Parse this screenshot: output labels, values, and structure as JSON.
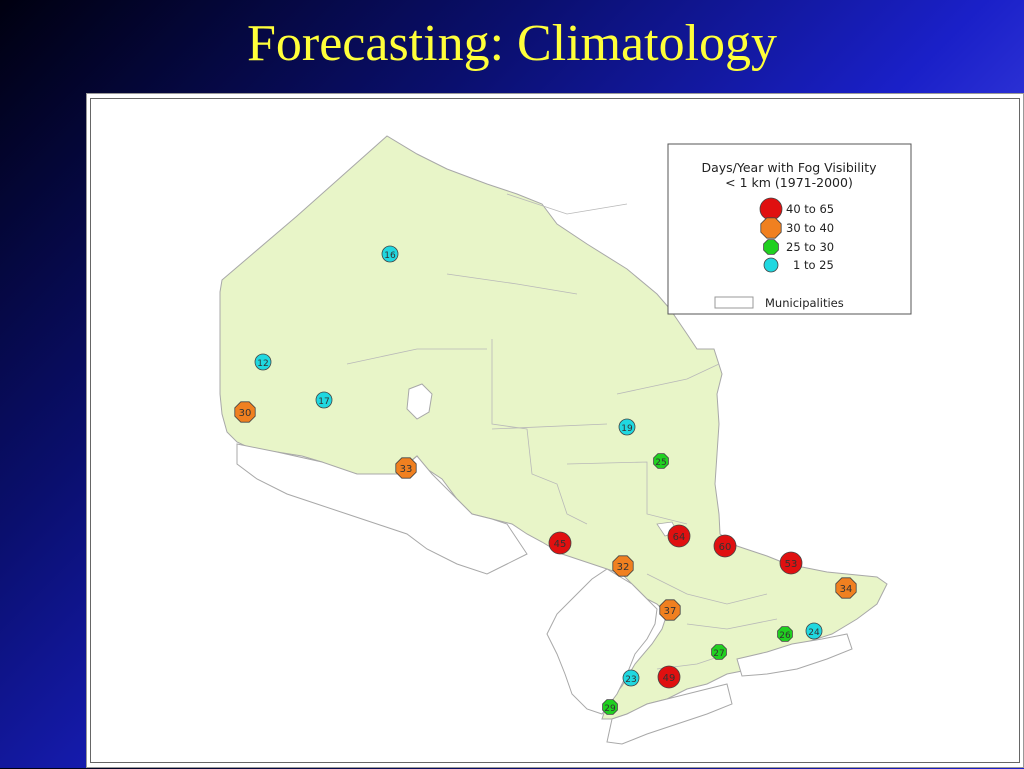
{
  "slide": {
    "title": "Forecasting: Climatology"
  },
  "legend": {
    "title_line1": "Days/Year with Fog Visibility",
    "title_line2": "< 1 km (1971-2000)",
    "classes": [
      {
        "label": "40 to 65",
        "color": "#e01010",
        "shape": "circle"
      },
      {
        "label": "30 to 40",
        "color": "#f08020",
        "shape": "octagon"
      },
      {
        "label": "25 to 30",
        "color": "#20d020",
        "shape": "octagon"
      },
      {
        "label": "1 to 25",
        "color": "#20d8e0",
        "shape": "circle"
      }
    ],
    "municipalities_label": "Municipalities"
  },
  "colors": {
    "land": "#e8f5c8",
    "outline": "#a8a8a8"
  },
  "stations": [
    {
      "value": "16",
      "class": 3
    },
    {
      "value": "12",
      "class": 3
    },
    {
      "value": "30",
      "class": 1
    },
    {
      "value": "17",
      "class": 3
    },
    {
      "value": "33",
      "class": 1
    },
    {
      "value": "19",
      "class": 3
    },
    {
      "value": "25",
      "class": 2
    },
    {
      "value": "45",
      "class": 0
    },
    {
      "value": "64",
      "class": 0
    },
    {
      "value": "60",
      "class": 0
    },
    {
      "value": "32",
      "class": 1
    },
    {
      "value": "53",
      "class": 0
    },
    {
      "value": "34",
      "class": 1
    },
    {
      "value": "37",
      "class": 1
    },
    {
      "value": "26",
      "class": 2
    },
    {
      "value": "24",
      "class": 3
    },
    {
      "value": "27",
      "class": 2
    },
    {
      "value": "49",
      "class": 0
    },
    {
      "value": "23",
      "class": 3
    },
    {
      "value": "29",
      "class": 2
    }
  ]
}
